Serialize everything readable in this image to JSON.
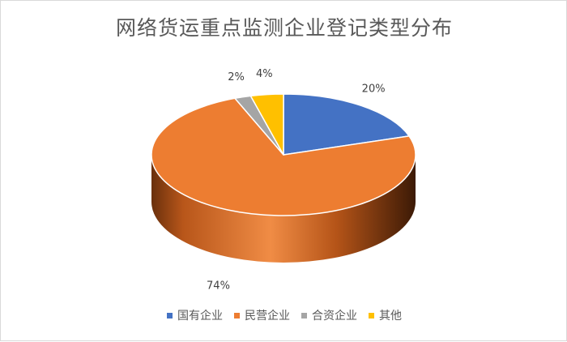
{
  "chart_data": {
    "type": "pie",
    "title": "网络货运重点监测企业登记类型分布",
    "categories": [
      "国有企业",
      "民营企业",
      "合资企业",
      "其他"
    ],
    "values": [
      20,
      74,
      2,
      4
    ],
    "labels": [
      "20%",
      "74%",
      "2%",
      "4%"
    ],
    "colors": [
      "#4472c4",
      "#ed7d31",
      "#a5a5a5",
      "#ffc000"
    ],
    "legend_position": "bottom",
    "style": "3d"
  }
}
